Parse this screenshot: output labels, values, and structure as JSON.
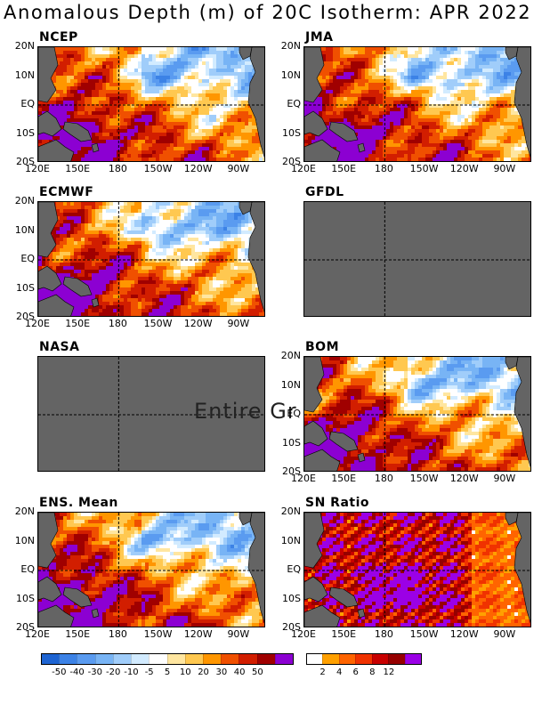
{
  "title": "Anomalous Depth (m) of 20C Isotherm: APR 2022",
  "panels": {
    "ncep": {
      "label": "NCEP"
    },
    "jma": {
      "label": "JMA"
    },
    "ecmwf": {
      "label": "ECMWF"
    },
    "gfdl": {
      "label": "GFDL"
    },
    "nasa": {
      "label": "NASA",
      "overlay_text": "Entire Gr"
    },
    "bom": {
      "label": "BOM"
    },
    "ens": {
      "label": "ENS. Mean"
    },
    "sn": {
      "label": "SN Ratio"
    }
  },
  "lat_labels": [
    "20N",
    "10N",
    "EQ",
    "10S",
    "20S"
  ],
  "lon_labels": [
    "120E",
    "150E",
    "180",
    "150W",
    "120W",
    "90W"
  ],
  "anomaly_colorbar": {
    "ticks": [
      "-50",
      "-40",
      "-30",
      "-20",
      "-10",
      "-5",
      "5",
      "10",
      "20",
      "30",
      "40",
      "50"
    ],
    "colors": [
      "#1e64d2",
      "#3c82e6",
      "#5a9bf0",
      "#78b4f5",
      "#a0cdfa",
      "#d2ebff",
      "#ffffff",
      "#ffe6a0",
      "#ffc850",
      "#ff9600",
      "#f05000",
      "#d21e00",
      "#a00000",
      "#8c00d2"
    ]
  },
  "sn_colorbar": {
    "ticks": [
      "2",
      "4",
      "6",
      "8",
      "12"
    ],
    "colors": [
      "#ffffff",
      "#ffa000",
      "#ff6400",
      "#f03200",
      "#c80000",
      "#960000",
      "#9b00e6"
    ]
  }
}
